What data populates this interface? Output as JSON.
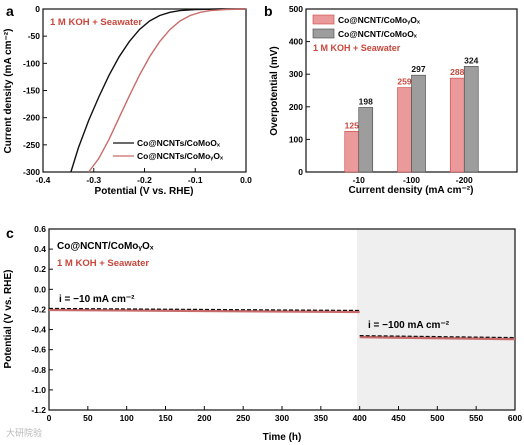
{
  "panels": {
    "a": "a",
    "b": "b",
    "c": "c"
  },
  "colors": {
    "black": "#111111",
    "red": "#c96b6b",
    "red_text": "#c8473c",
    "bar_red": "#ea9a9a",
    "bar_gray": "#9d9d9d",
    "shade": "#efefef"
  },
  "chart_data": [
    {
      "panel": "a",
      "type": "line",
      "xlabel": "Potential (V vs. RHE)",
      "ylabel": "Current density (mA cm⁻²)",
      "xlim": [
        -0.4,
        0.0
      ],
      "ylim": [
        -300,
        0
      ],
      "xticks": [
        "-0.4",
        "-0.3",
        "-0.2",
        "-0.1",
        "0.0"
      ],
      "yticks": [
        "0",
        "-50",
        "-100",
        "-150",
        "-200",
        "-250",
        "-300"
      ],
      "annotation": "1 M KOH + Seawater",
      "grid": false,
      "legend_position": "bottom-right",
      "series": [
        {
          "name": "Co@NCNTs/CoMoOₓ",
          "color": "#111111",
          "x": [
            0.0,
            -0.05,
            -0.1,
            -0.13,
            -0.15,
            -0.17,
            -0.19,
            -0.21,
            -0.23,
            -0.25,
            -0.27,
            -0.29,
            -0.31,
            -0.33,
            -0.345
          ],
          "y": [
            0,
            0,
            -1,
            -3,
            -6,
            -12,
            -22,
            -38,
            -60,
            -88,
            -122,
            -162,
            -205,
            -255,
            -300
          ]
        },
        {
          "name": "Co@NCNTs/CoMoᵧOₓ",
          "color": "#c96b6b",
          "x": [
            0.0,
            -0.04,
            -0.07,
            -0.09,
            -0.11,
            -0.13,
            -0.15,
            -0.17,
            -0.19,
            -0.21,
            -0.23,
            -0.25,
            -0.27,
            -0.29,
            -0.31
          ],
          "y": [
            0,
            -1,
            -3,
            -6,
            -12,
            -22,
            -38,
            -60,
            -88,
            -122,
            -160,
            -200,
            -240,
            -275,
            -300
          ]
        }
      ]
    },
    {
      "panel": "b",
      "type": "bar",
      "xlabel": "Current density (mA cm⁻²)",
      "ylabel": "Overpotential (mV)",
      "categories": [
        "-10",
        "-100",
        "-200"
      ],
      "ylim": [
        0,
        500
      ],
      "yticks": [
        "0",
        "100",
        "200",
        "300",
        "400",
        "500"
      ],
      "annotation": "1 M KOH + Seawater",
      "legend_position": "top-left",
      "series": [
        {
          "name": "Co@NCNT/CoMoᵧOₓ",
          "color": "#ea9a9a",
          "values": [
            125,
            259,
            288
          ]
        },
        {
          "name": "Co@NCNT/CoMoOₓ",
          "color": "#9d9d9d",
          "values": [
            198,
            297,
            324
          ]
        }
      ]
    },
    {
      "panel": "c",
      "type": "line",
      "xlabel": "Time (h)",
      "ylabel": "Potential (V vs. RHE)",
      "xlim": [
        0,
        600
      ],
      "ylim": [
        -1.2,
        0.6
      ],
      "xticks": [
        "0",
        "50",
        "100",
        "150",
        "200",
        "250",
        "300",
        "350",
        "400",
        "450",
        "500",
        "550",
        "600"
      ],
      "yticks": [
        "0.6",
        "0.4",
        "0.2",
        "0.0",
        "-0.2",
        "-0.4",
        "-0.6",
        "-0.8",
        "-1.0",
        "-1.2"
      ],
      "title_text": "Co@NCNT/CoMoᵧOₓ",
      "annotation": "1 M KOH + Seawater",
      "label_1": "i = −10 mA cm⁻²",
      "label_2": "i = −100 mA cm⁻²",
      "series": [
        {
          "name": "i = -10 mA cm-2",
          "x": [
            0,
            400
          ],
          "y": [
            -0.19,
            -0.21
          ]
        },
        {
          "name": "i = -100 mA cm-2",
          "x": [
            400,
            600
          ],
          "y": [
            -0.46,
            -0.48
          ]
        }
      ]
    }
  ],
  "watermark": "大研院验"
}
